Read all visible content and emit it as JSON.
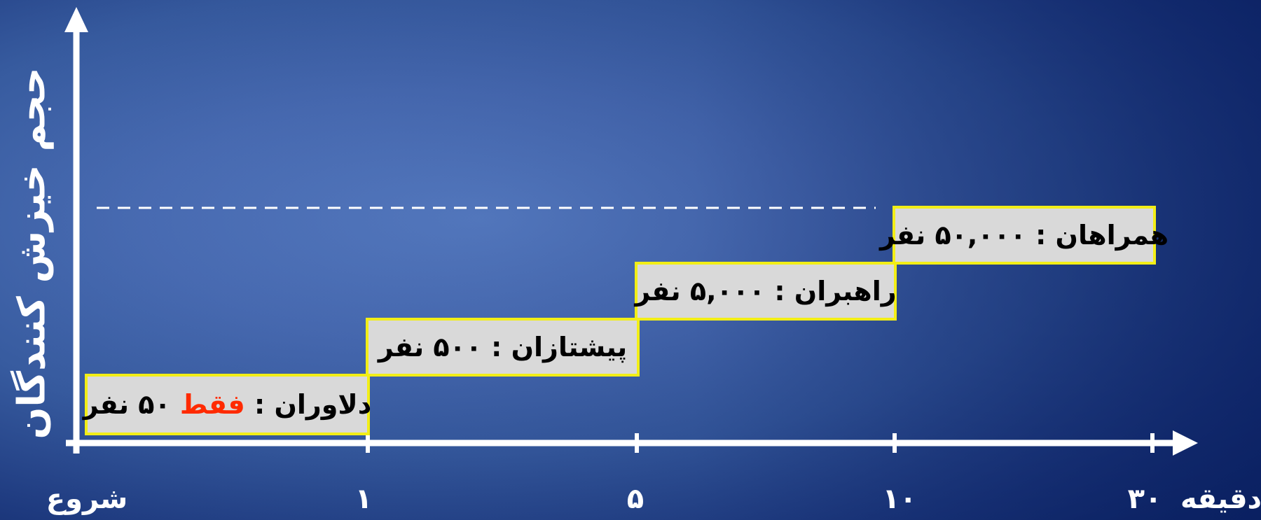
{
  "diagram": {
    "y_axis_title": "حجم خیزش کنندگان",
    "x_axis_unit": "دقیقه",
    "x_ticks": [
      "شروع",
      "۱",
      "۵",
      "۱۰",
      "۳۰"
    ],
    "steps": [
      {
        "label_before": "دلاوران : ",
        "label_highlight": "فقط",
        "label_after": " ۵۰ نفر"
      },
      {
        "label_before": "پیشتازان : ۵۰۰ نفر",
        "label_highlight": "",
        "label_after": ""
      },
      {
        "label_before": "راهبران : ۵,۰۰۰ نفر",
        "label_highlight": "",
        "label_after": ""
      },
      {
        "label_before": "همراهان : ۵۰,۰۰۰ نفر",
        "label_highlight": "",
        "label_after": ""
      }
    ],
    "colors": {
      "box_fill": "#d9d9d9",
      "box_border": "#f2ee17",
      "highlight": "#ff2a00",
      "axis": "#ffffff"
    }
  }
}
